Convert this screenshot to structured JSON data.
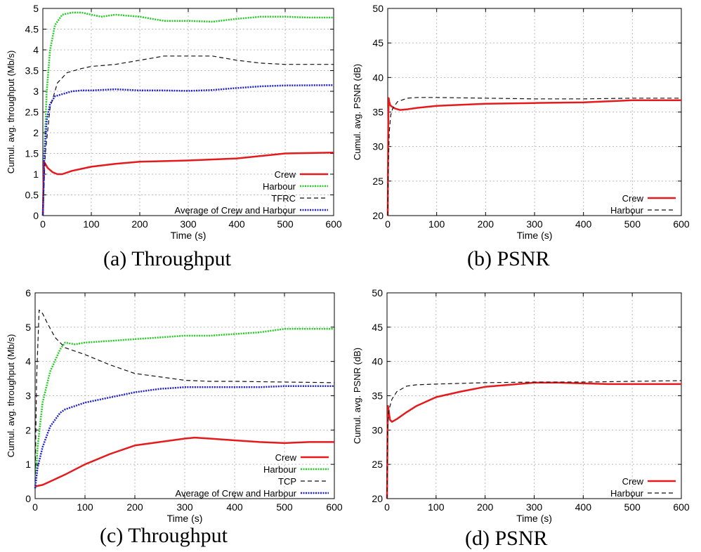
{
  "captions": {
    "a": "(a)  Throughput",
    "b": "(b)  PSNR",
    "c": "(c)  Throughput",
    "d": "(d)  PSNR"
  },
  "chart_data": [
    {
      "id": "a",
      "type": "line",
      "xlabel": "Time (s)",
      "ylabel": "Cumul. avg. throughput (Mb/s)",
      "xlim": [
        0,
        600
      ],
      "ylim": [
        0,
        5
      ],
      "xticks": [
        0,
        100,
        200,
        300,
        400,
        500,
        600
      ],
      "yticks": [
        0,
        0.5,
        1,
        1.5,
        2,
        2.5,
        3,
        3.5,
        4,
        4.5,
        5
      ],
      "yticklabels": [
        "0",
        "0.5",
        "1",
        "1.5",
        "2",
        "2.5",
        "3",
        "3.5",
        "4",
        "4.5",
        "5"
      ],
      "grid": true,
      "legend_position": "bottom-right",
      "series": [
        {
          "name": "Crew",
          "color": "#e41a1c",
          "style": "solid",
          "x": [
            0,
            2,
            5,
            10,
            20,
            30,
            40,
            60,
            100,
            150,
            200,
            300,
            400,
            500,
            600
          ],
          "y": [
            0,
            1.3,
            1.25,
            1.15,
            1.05,
            1.0,
            1.0,
            1.08,
            1.18,
            1.25,
            1.3,
            1.33,
            1.38,
            1.5,
            1.52
          ]
        },
        {
          "name": "Harbour",
          "color": "#22cc22",
          "style": "dotted",
          "x": [
            0,
            3,
            8,
            15,
            25,
            40,
            60,
            80,
            100,
            120,
            150,
            200,
            250,
            300,
            350,
            400,
            450,
            500,
            550,
            600
          ],
          "y": [
            0,
            1.5,
            3.0,
            4.0,
            4.6,
            4.85,
            4.9,
            4.9,
            4.85,
            4.8,
            4.85,
            4.8,
            4.7,
            4.7,
            4.68,
            4.75,
            4.8,
            4.8,
            4.78,
            4.78
          ]
        },
        {
          "name": "TFRC",
          "color": "#111111",
          "style": "dashed",
          "x": [
            0,
            5,
            15,
            30,
            50,
            80,
            100,
            150,
            200,
            250,
            300,
            350,
            400,
            450,
            500,
            600
          ],
          "y": [
            0,
            1.5,
            2.6,
            3.2,
            3.45,
            3.55,
            3.6,
            3.65,
            3.75,
            3.85,
            3.85,
            3.85,
            3.75,
            3.68,
            3.65,
            3.65
          ]
        },
        {
          "name": "Average of Crew and Harbour",
          "color": "#1f1fd8",
          "style": "dotted",
          "x": [
            0,
            3,
            8,
            15,
            25,
            40,
            60,
            80,
            100,
            150,
            200,
            250,
            300,
            350,
            400,
            450,
            500,
            600
          ],
          "y": [
            0,
            1.4,
            2.3,
            2.7,
            2.88,
            2.93,
            3.0,
            3.02,
            3.02,
            3.05,
            3.02,
            3.02,
            3.01,
            3.03,
            3.08,
            3.12,
            3.14,
            3.15
          ]
        }
      ]
    },
    {
      "id": "b",
      "type": "line",
      "xlabel": "Time (s)",
      "ylabel": "Cumul. avg. PSNR (dB)",
      "xlim": [
        0,
        600
      ],
      "ylim": [
        20,
        50
      ],
      "xticks": [
        0,
        100,
        200,
        300,
        400,
        500,
        600
      ],
      "yticks": [
        20,
        25,
        30,
        35,
        40,
        45,
        50
      ],
      "yticklabels": [
        "20",
        "25",
        "30",
        "35",
        "40",
        "45",
        "50"
      ],
      "grid": true,
      "legend_position": "bottom-right",
      "series": [
        {
          "name": "Crew",
          "color": "#e41a1c",
          "style": "solid",
          "x": [
            0,
            1,
            2,
            3,
            5,
            8,
            15,
            25,
            40,
            60,
            100,
            200,
            300,
            400,
            500,
            600
          ],
          "y": [
            20,
            33,
            37,
            36.5,
            36.0,
            35.8,
            35.5,
            35.3,
            35.4,
            35.6,
            35.9,
            36.2,
            36.3,
            36.4,
            36.7,
            36.7
          ]
        },
        {
          "name": "Harbour",
          "color": "#111111",
          "style": "dashed",
          "x": [
            0,
            1,
            3,
            6,
            10,
            20,
            40,
            60,
            100,
            200,
            300,
            400,
            500,
            600
          ],
          "y": [
            20,
            26,
            32,
            34.5,
            35.5,
            36.5,
            37.0,
            37.1,
            37.1,
            37.0,
            36.9,
            36.9,
            37.0,
            37.0
          ]
        }
      ]
    },
    {
      "id": "c",
      "type": "line",
      "xlabel": "Time (s)",
      "ylabel": "Cumul. avg. throughput (Mb/s)",
      "xlim": [
        0,
        600
      ],
      "ylim": [
        0,
        6
      ],
      "xticks": [
        0,
        100,
        200,
        300,
        400,
        500,
        600
      ],
      "yticks": [
        0,
        1,
        2,
        3,
        4,
        5,
        6
      ],
      "yticklabels": [
        "0",
        "1",
        "2",
        "3",
        "4",
        "5",
        "6"
      ],
      "grid": true,
      "legend_position": "bottom-right",
      "series": [
        {
          "name": "Crew",
          "color": "#e41a1c",
          "style": "solid",
          "x": [
            0,
            5,
            15,
            30,
            60,
            100,
            150,
            200,
            250,
            300,
            320,
            350,
            400,
            450,
            500,
            550,
            600
          ],
          "y": [
            0.35,
            0.37,
            0.4,
            0.5,
            0.7,
            1.0,
            1.3,
            1.55,
            1.65,
            1.75,
            1.78,
            1.75,
            1.7,
            1.65,
            1.62,
            1.65,
            1.65
          ]
        },
        {
          "name": "Harbour",
          "color": "#22cc22",
          "style": "dotted",
          "x": [
            0,
            5,
            15,
            30,
            50,
            60,
            80,
            100,
            150,
            200,
            250,
            300,
            350,
            400,
            450,
            500,
            550,
            600
          ],
          "y": [
            0.3,
            1.5,
            2.8,
            3.7,
            4.35,
            4.55,
            4.5,
            4.55,
            4.6,
            4.65,
            4.7,
            4.75,
            4.75,
            4.8,
            4.85,
            4.95,
            4.95,
            4.95
          ]
        },
        {
          "name": "TCP",
          "color": "#111111",
          "style": "dashed",
          "x": [
            0,
            3,
            8,
            15,
            25,
            40,
            60,
            100,
            150,
            200,
            250,
            300,
            350,
            400,
            500,
            600
          ],
          "y": [
            0.5,
            3.5,
            5.5,
            5.4,
            5.1,
            4.7,
            4.4,
            4.2,
            3.9,
            3.65,
            3.55,
            3.45,
            3.42,
            3.42,
            3.4,
            3.38
          ]
        },
        {
          "name": "Average of Crew and Harbour",
          "color": "#1f1fd8",
          "style": "dotted",
          "x": [
            0,
            5,
            15,
            30,
            50,
            60,
            80,
            100,
            150,
            200,
            250,
            300,
            350,
            400,
            450,
            500,
            600
          ],
          "y": [
            0.3,
            0.9,
            1.5,
            2.1,
            2.5,
            2.6,
            2.7,
            2.8,
            2.95,
            3.1,
            3.2,
            3.25,
            3.25,
            3.25,
            3.25,
            3.28,
            3.28
          ]
        }
      ]
    },
    {
      "id": "d",
      "type": "line",
      "xlabel": "Time (s)",
      "ylabel": "Cumul. avg. PSNR (dB)",
      "xlim": [
        0,
        600
      ],
      "ylim": [
        20,
        50
      ],
      "xticks": [
        0,
        100,
        200,
        300,
        400,
        500,
        600
      ],
      "yticks": [
        20,
        25,
        30,
        35,
        40,
        45,
        50
      ],
      "yticklabels": [
        "20",
        "25",
        "30",
        "35",
        "40",
        "45",
        "50"
      ],
      "grid": true,
      "legend_position": "bottom-right",
      "series": [
        {
          "name": "Crew",
          "color": "#e41a1c",
          "style": "solid",
          "x": [
            0,
            1,
            2,
            4,
            6,
            10,
            20,
            40,
            60,
            100,
            150,
            200,
            250,
            300,
            350,
            400,
            450,
            500,
            550,
            600
          ],
          "y": [
            20,
            30,
            33.5,
            32.5,
            31.5,
            31.2,
            31.6,
            32.6,
            33.5,
            34.8,
            35.6,
            36.3,
            36.6,
            36.9,
            36.9,
            36.8,
            36.7,
            36.7,
            36.7,
            36.7
          ]
        },
        {
          "name": "Harbour",
          "color": "#111111",
          "style": "dashed",
          "x": [
            0,
            1,
            3,
            6,
            10,
            20,
            40,
            60,
            100,
            200,
            300,
            400,
            500,
            600
          ],
          "y": [
            20,
            30,
            32.5,
            33.5,
            34.5,
            35.6,
            36.4,
            36.6,
            36.7,
            36.9,
            37.0,
            37.0,
            37.1,
            37.2
          ]
        }
      ]
    }
  ]
}
